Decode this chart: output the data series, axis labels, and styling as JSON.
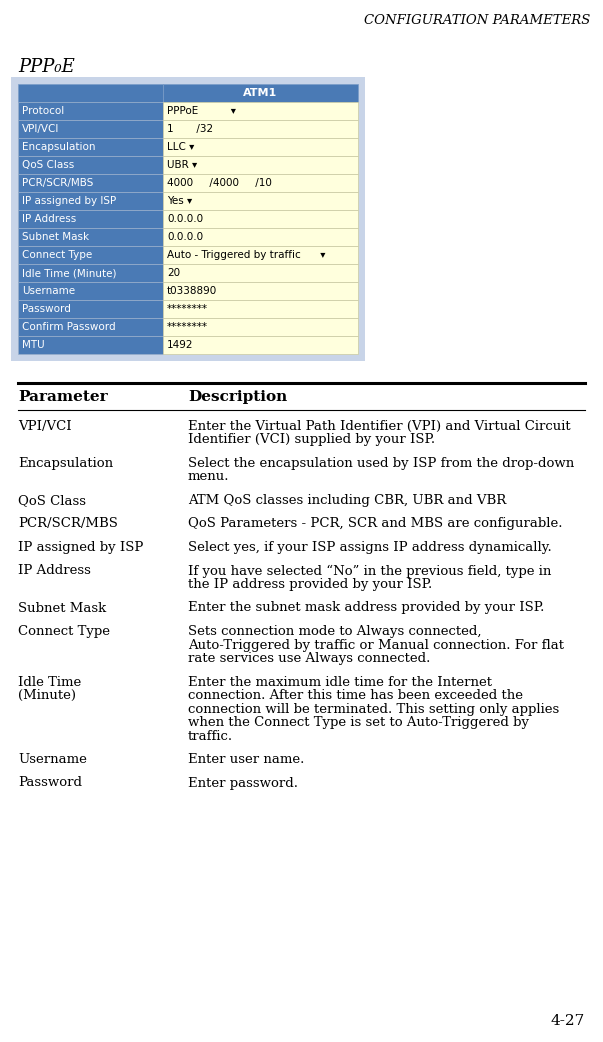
{
  "page_title": "CONFIGURATION PARAMETERS",
  "section_title": "PPP₀E",
  "page_number": "4-27",
  "table_header_bg": "#4a7ab5",
  "table_header_text": "#ffffff",
  "table_row_label_bg": "#4a7ab5",
  "table_row_label_text": "#ffffff",
  "table_row_value_bg": "#ffffdd",
  "table_outer_bg": "#c8d4e8",
  "table_header_label": "ATM1",
  "table_rows": [
    {
      "label": "Protocol",
      "value": "PPPoE          ▾"
    },
    {
      "label": "VPI/VCI",
      "value": "1       /32"
    },
    {
      "label": "Encapsulation",
      "value": "LLC ▾"
    },
    {
      "label": "QoS Class",
      "value": "UBR ▾"
    },
    {
      "label": "PCR/SCR/MBS",
      "value": "4000     /4000     /10"
    },
    {
      "label": "IP assigned by ISP",
      "value": "Yes ▾"
    },
    {
      "label": "IP Address",
      "value": "0.0.0.0"
    },
    {
      "label": "Subnet Mask",
      "value": "0.0.0.0"
    },
    {
      "label": "Connect Type",
      "value": "Auto - Triggered by traffic      ▾"
    },
    {
      "label": "Idle Time (Minute)",
      "value": "20"
    },
    {
      "label": "Username",
      "value": "t0338890"
    },
    {
      "label": "Password",
      "value": "********"
    },
    {
      "label": "Confirm Password",
      "value": "********"
    },
    {
      "label": "MTU",
      "value": "1492"
    }
  ],
  "param_col_header": "Parameter",
  "desc_col_header": "Description",
  "descriptions": [
    {
      "param": "VPI/VCI",
      "desc": "Enter the Virtual Path Identifier (VPI) and Virtual Circuit\nIdentifier (VCI) supplied by your ISP."
    },
    {
      "param": "Encapsulation",
      "desc": "Select the encapsulation used by ISP from the drop-down\nmenu."
    },
    {
      "param": "QoS Class",
      "desc": "ATM QoS classes including CBR, UBR and VBR"
    },
    {
      "param": "PCR/SCR/MBS",
      "desc": "QoS Parameters - PCR, SCR and MBS are configurable."
    },
    {
      "param": "IP assigned by ISP",
      "desc": "Select yes, if your ISP assigns IP address dynamically."
    },
    {
      "param": "IP Address",
      "desc": "If you have selected “No” in the previous field, type in\nthe IP address provided by your ISP."
    },
    {
      "param": "Subnet Mask",
      "desc": "Enter the subnet mask address provided by your ISP."
    },
    {
      "param": "Connect Type",
      "desc": "Sets connection mode to Always connected,\nAuto-Triggered by traffic or Manual connection. For flat\nrate services use Always connected."
    },
    {
      "param": "Idle Time\n(Minute)",
      "desc": "Enter the maximum idle time for the Internet\nconnection. After this time has been exceeded the\nconnection will be terminated. This setting only applies\nwhen the Connect Type is set to Auto-Triggered by\ntraffic."
    },
    {
      "param": "Username",
      "desc": "Enter user name."
    },
    {
      "param": "Password",
      "desc": "Enter password."
    }
  ],
  "bg_color": "#ffffff"
}
